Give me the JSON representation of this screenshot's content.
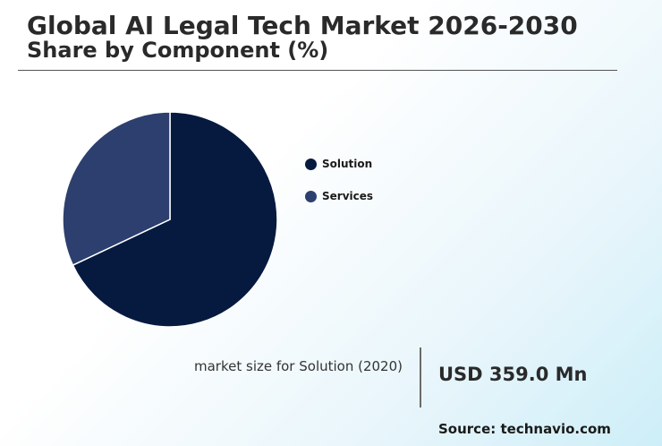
{
  "header": {
    "title": "Global AI Legal Tech Market 2026-2030",
    "subtitle": "Share by Component (%)"
  },
  "chart_data": {
    "type": "pie",
    "title": "Share by Component (%)",
    "categories": [
      "Solution",
      "Services"
    ],
    "values": [
      68,
      32
    ],
    "colors": [
      "#061a40",
      "#2c3f6e"
    ],
    "start_angle_deg": 0,
    "direction": "clockwise",
    "legend": "right"
  },
  "legend": {
    "items": [
      {
        "label": "Solution",
        "color": "#061a40"
      },
      {
        "label": "Services",
        "color": "#2c3f6e"
      }
    ]
  },
  "metric": {
    "label": "market size for Solution (2020)",
    "value": "USD 359.0 Mn"
  },
  "source": "Source: technavio.com"
}
